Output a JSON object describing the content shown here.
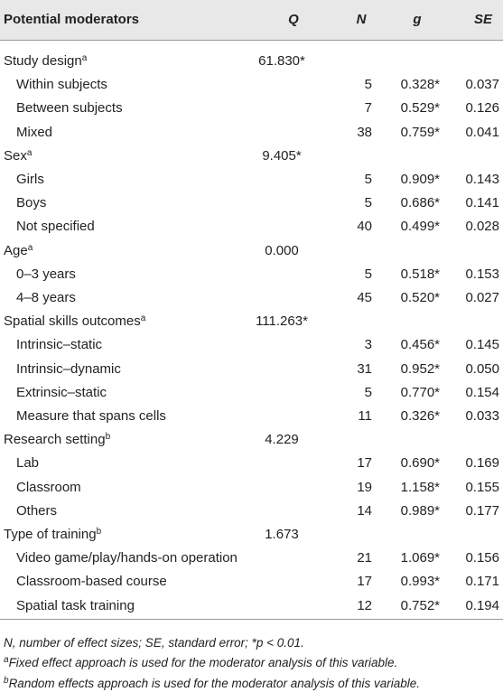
{
  "table": {
    "header": [
      "Potential moderators",
      "Q",
      "N",
      "g",
      "SE"
    ],
    "groups": [
      {
        "label": "Study design",
        "mark": "a",
        "q": "61.830*",
        "items": [
          [
            "Within subjects",
            "5",
            "0.328*",
            "0.037"
          ],
          [
            "Between subjects",
            "7",
            "0.529*",
            "0.126"
          ],
          [
            "Mixed",
            "38",
            "0.759*",
            "0.041"
          ]
        ]
      },
      {
        "label": "Sex",
        "mark": "a",
        "q": "9.405*",
        "items": [
          [
            "Girls",
            "5",
            "0.909*",
            "0.143"
          ],
          [
            "Boys",
            "5",
            "0.686*",
            "0.141"
          ],
          [
            "Not specified",
            "40",
            "0.499*",
            "0.028"
          ]
        ]
      },
      {
        "label": "Age",
        "mark": "a",
        "q": "0.000",
        "items": [
          [
            "0–3 years",
            "5",
            "0.518*",
            "0.153"
          ],
          [
            "4–8 years",
            "45",
            "0.520*",
            "0.027"
          ]
        ]
      },
      {
        "label": "Spatial skills outcomes",
        "mark": "a",
        "q": "111.263*",
        "items": [
          [
            "Intrinsic–static",
            "3",
            "0.456*",
            "0.145"
          ],
          [
            "Intrinsic–dynamic",
            "31",
            "0.952*",
            "0.050"
          ],
          [
            "Extrinsic–static",
            "5",
            "0.770*",
            "0.154"
          ],
          [
            "Measure that spans cells",
            "11",
            "0.326*",
            "0.033"
          ]
        ]
      },
      {
        "label": "Research setting",
        "mark": "b",
        "q": "4.229",
        "items": [
          [
            "Lab",
            "17",
            "0.690*",
            "0.169"
          ],
          [
            "Classroom",
            "19",
            "1.158*",
            "0.155"
          ],
          [
            "Others",
            "14",
            "0.989*",
            "0.177"
          ]
        ]
      },
      {
        "label": "Type of training",
        "mark": "b",
        "q": "1.673",
        "items": [
          [
            "Video game/play/hands-on operation",
            "21",
            "1.069*",
            "0.156"
          ],
          [
            "Classroom-based course",
            "17",
            "0.993*",
            "0.171"
          ],
          [
            "Spatial task training",
            "12",
            "0.752*",
            "0.194"
          ]
        ]
      }
    ]
  },
  "footnotes": [
    {
      "text": "N, number of effect sizes; SE, standard error; *p < 0.01."
    },
    {
      "mark": "a",
      "text": "Fixed effect approach is used for the moderator analysis of this variable."
    },
    {
      "mark": "b",
      "text": "Random effects approach is used for the moderator analysis of this variable."
    }
  ]
}
